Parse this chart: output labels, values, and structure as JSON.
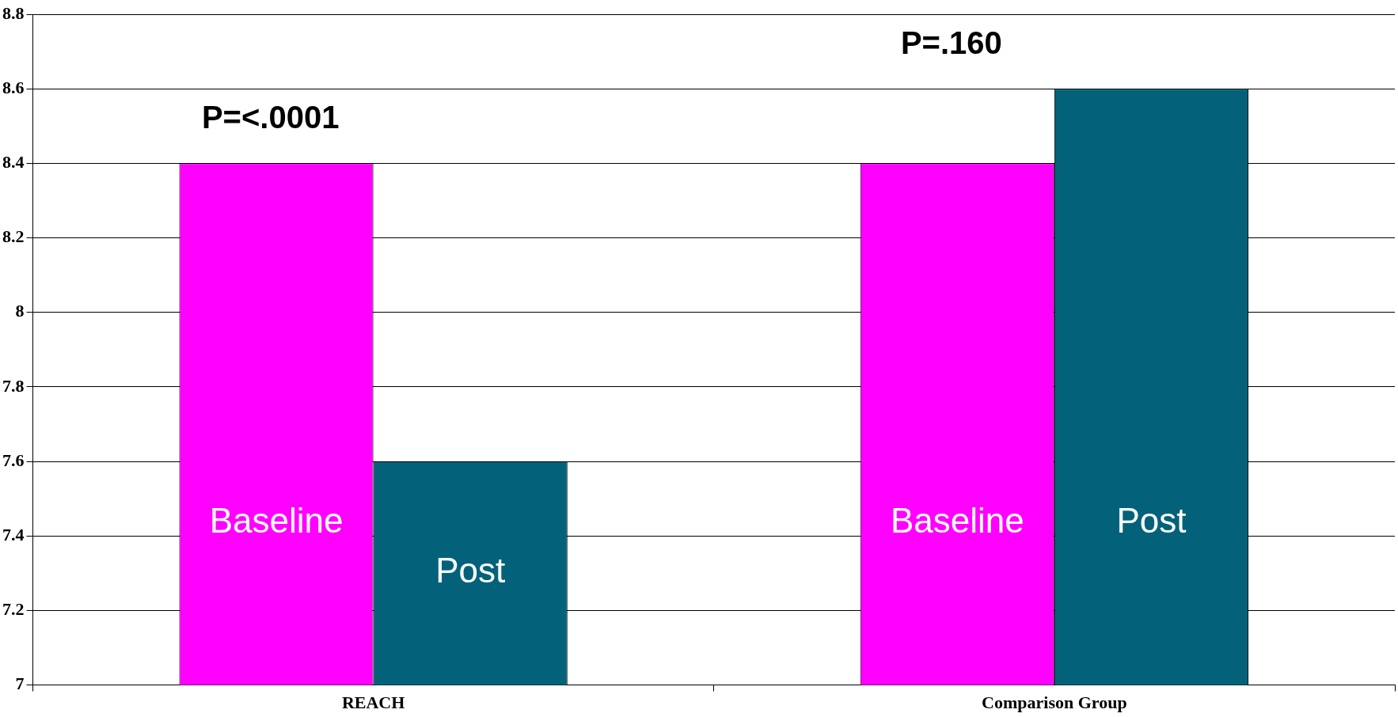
{
  "chart_data": {
    "type": "bar",
    "categories": [
      "REACH",
      "Comparison Group"
    ],
    "series": [
      {
        "name": "Baseline",
        "color": "#ff00ff",
        "values": [
          8.4,
          8.4
        ]
      },
      {
        "name": "Post",
        "color": "#03627a",
        "values": [
          7.6,
          8.6
        ]
      }
    ],
    "ylim": [
      7,
      8.8
    ],
    "yticks": [
      7,
      7.2,
      7.4,
      7.6,
      7.8,
      8,
      8.2,
      8.4,
      8.6,
      8.8
    ],
    "grid": "y",
    "legend": false,
    "annotations": [
      "P=<.0001",
      "P=.160"
    ]
  }
}
